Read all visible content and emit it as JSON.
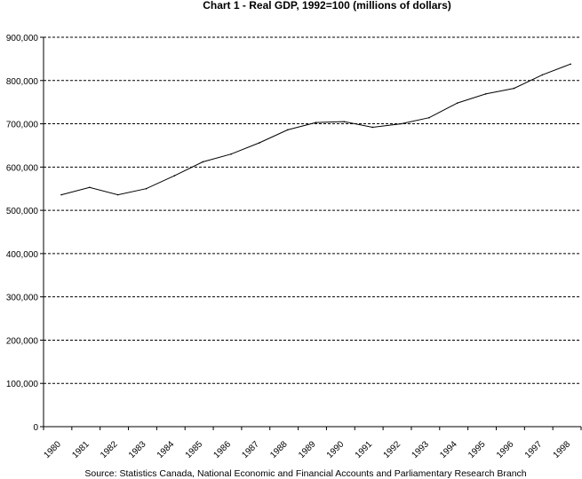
{
  "chart_data": {
    "type": "line",
    "title": "Chart 1 - Real GDP, 1992=100 (millions of dollars)",
    "xlabel": "",
    "ylabel": "",
    "source": "Source: Statistics Canada, National Economic and Financial Accounts and Parliamentary Research Branch",
    "ylim": [
      0,
      900000
    ],
    "yticks": [
      0,
      100000,
      200000,
      300000,
      400000,
      500000,
      600000,
      700000,
      800000,
      900000
    ],
    "ytick_labels": [
      "0",
      "100,000",
      "200,000",
      "300,000",
      "400,000",
      "500,000",
      "600,000",
      "700,000",
      "800,000",
      "900,000"
    ],
    "grid": "horizontal dashed",
    "x": [
      "1980",
      "1981",
      "1982",
      "1983",
      "1984",
      "1985",
      "1986",
      "1987",
      "1988",
      "1989",
      "1990",
      "1991",
      "1992",
      "1993",
      "1994",
      "1995",
      "1996",
      "1997",
      "1998"
    ],
    "series": [
      {
        "name": "",
        "color": "#000000",
        "values": [
          536000,
          553000,
          536000,
          550000,
          580000,
          612000,
          630000,
          656000,
          686000,
          703000,
          705000,
          692000,
          700000,
          714000,
          748000,
          769000,
          782000,
          813000,
          838000
        ]
      }
    ]
  }
}
